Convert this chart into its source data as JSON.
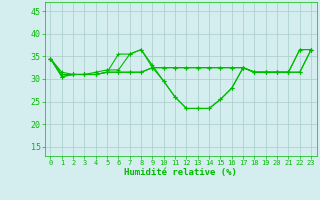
{
  "xlabel": "Humidité relative (%)",
  "bg_color": "#d4eef0",
  "grid_color": "#aacccc",
  "line_color": "#00bb00",
  "ylim": [
    13,
    47
  ],
  "yticks": [
    15,
    20,
    25,
    30,
    35,
    40,
    45
  ],
  "xlim": [
    -0.5,
    23.5
  ],
  "xticks": [
    0,
    1,
    2,
    3,
    4,
    5,
    6,
    7,
    8,
    9,
    10,
    11,
    12,
    13,
    14,
    15,
    16,
    17,
    18,
    19,
    20,
    21,
    22,
    23
  ],
  "series": [
    [
      34.5,
      31.5,
      31.0,
      31.0,
      31.0,
      31.5,
      35.5,
      35.5,
      36.5,
      32.5,
      29.5,
      26.0,
      23.5,
      23.5,
      23.5,
      25.5,
      28.0,
      32.5,
      31.5,
      31.5,
      31.5,
      31.5,
      36.5,
      36.5
    ],
    [
      34.5,
      31.0,
      31.0,
      31.0,
      31.0,
      31.5,
      31.5,
      31.5,
      31.5,
      32.5,
      32.5,
      32.5,
      32.5,
      32.5,
      32.5,
      32.5,
      32.5,
      32.5,
      31.5,
      31.5,
      31.5,
      31.5,
      31.5,
      36.5
    ],
    [
      34.5,
      30.5,
      31.0,
      31.0,
      31.0,
      31.5,
      31.5,
      31.5,
      31.5,
      32.5,
      32.5,
      32.5,
      32.5,
      32.5,
      32.5,
      32.5,
      32.5,
      32.5,
      31.5,
      31.5,
      31.5,
      31.5,
      31.5,
      36.5
    ],
    [
      34.5,
      30.5,
      31.0,
      31.0,
      31.5,
      32.0,
      32.0,
      35.5,
      36.5,
      33.0,
      29.5,
      26.0,
      23.5,
      23.5,
      23.5,
      25.5,
      28.0,
      32.5,
      31.5,
      31.5,
      31.5,
      31.5,
      36.5,
      36.5
    ]
  ]
}
